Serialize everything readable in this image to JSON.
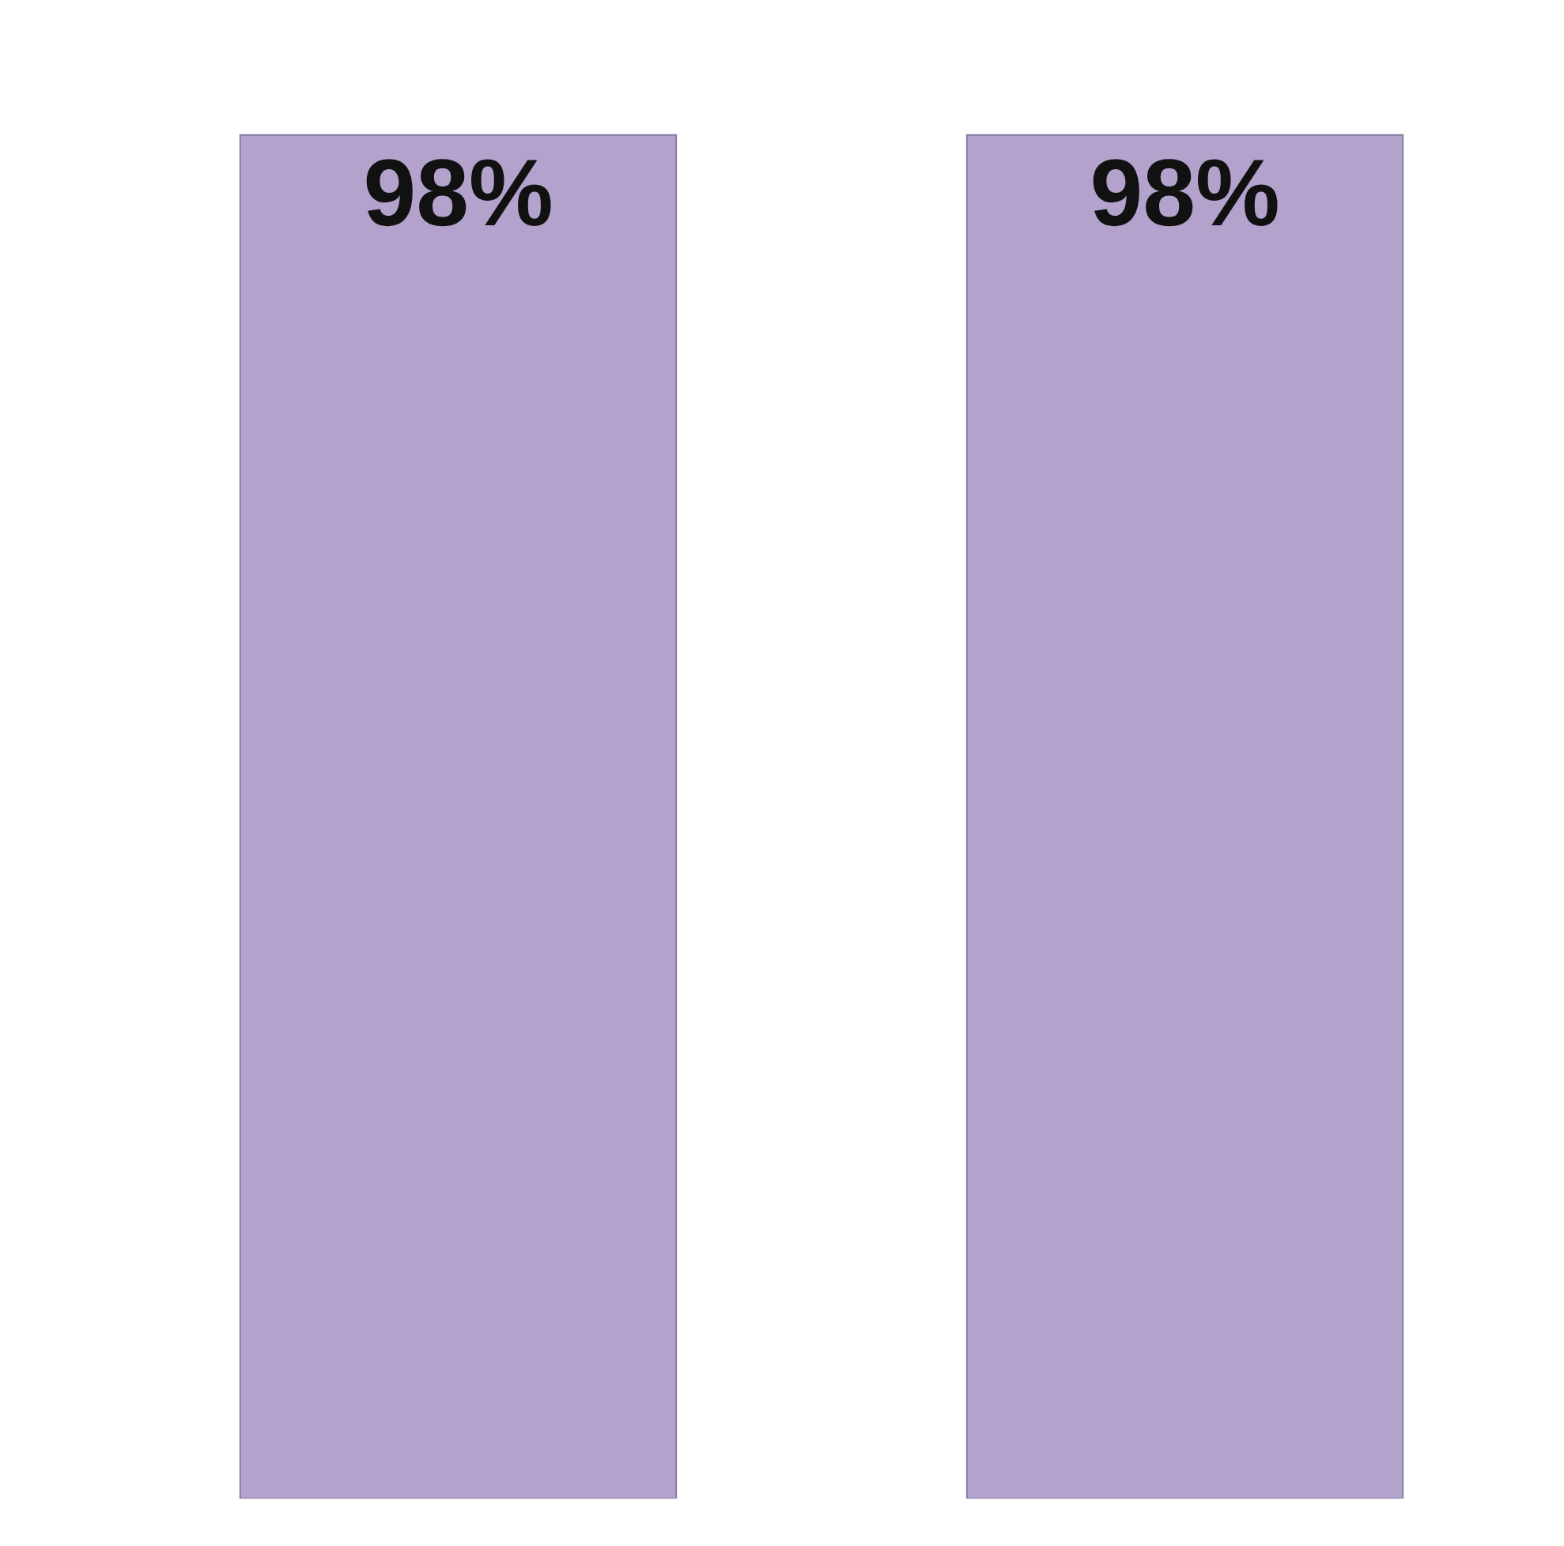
{
  "chart_data": {
    "type": "bar",
    "categories": [
      null,
      null
    ],
    "values": [
      98,
      98
    ],
    "color": "#b2a2cc",
    "value_labels": [
      "98%",
      "98%"
    ],
    "tick_labels": false
  }
}
